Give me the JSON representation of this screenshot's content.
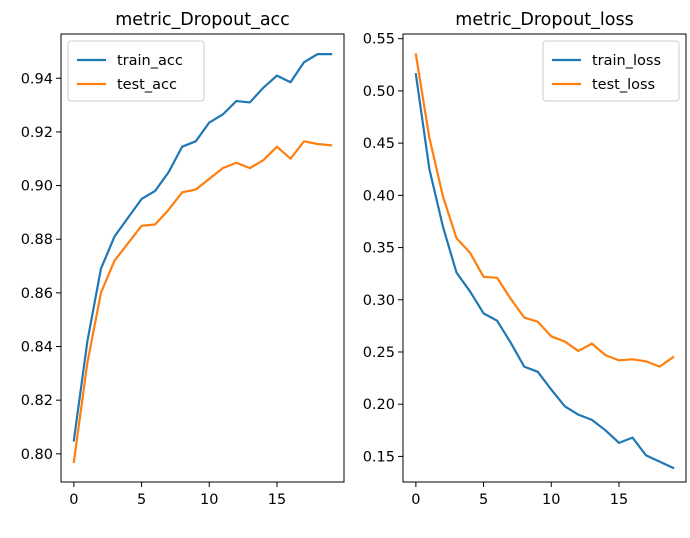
{
  "chart_data": [
    {
      "type": "line",
      "title": "metric_Dropout_acc",
      "xlabel": "",
      "ylabel": "",
      "xlim": [
        -0.95,
        19.95
      ],
      "ylim": [
        0.7895,
        0.9565
      ],
      "xticks": [
        0,
        5,
        10,
        15
      ],
      "xtick_labels": [
        "0",
        "5",
        "10",
        "15"
      ],
      "yticks": [
        0.8,
        0.82,
        0.84,
        0.86,
        0.88,
        0.9,
        0.92,
        0.94
      ],
      "ytick_labels": [
        "0.80",
        "0.82",
        "0.84",
        "0.86",
        "0.88",
        "0.90",
        "0.92",
        "0.94"
      ],
      "legend": "upper left",
      "grid": false,
      "x": [
        0,
        1,
        2,
        3,
        4,
        5,
        6,
        7,
        8,
        9,
        10,
        11,
        12,
        13,
        14,
        15,
        16,
        17,
        18,
        19
      ],
      "series": [
        {
          "name": "train_acc",
          "color": "#1f77b4",
          "values": [
            0.805,
            0.842,
            0.869,
            0.881,
            0.888,
            0.895,
            0.898,
            0.905,
            0.9145,
            0.9165,
            0.9235,
            0.9265,
            0.9315,
            0.931,
            0.9365,
            0.941,
            0.9385,
            0.946,
            0.949,
            0.949
          ]
        },
        {
          "name": "test_acc",
          "color": "#ff7f0e",
          "values": [
            0.797,
            0.834,
            0.86,
            0.872,
            0.8785,
            0.885,
            0.8855,
            0.891,
            0.8975,
            0.8985,
            0.9025,
            0.9065,
            0.9085,
            0.9065,
            0.9095,
            0.9145,
            0.91,
            0.9165,
            0.9155,
            0.915
          ]
        }
      ]
    },
    {
      "type": "line",
      "title": "metric_Dropout_loss",
      "xlabel": "",
      "ylabel": "",
      "xlim": [
        -0.95,
        19.95
      ],
      "ylim": [
        0.1255,
        0.5545
      ],
      "xticks": [
        0,
        5,
        10,
        15
      ],
      "xtick_labels": [
        "0",
        "5",
        "10",
        "15"
      ],
      "yticks": [
        0.15,
        0.2,
        0.25,
        0.3,
        0.35,
        0.4,
        0.45,
        0.5,
        0.55
      ],
      "ytick_labels": [
        "0.15",
        "0.20",
        "0.25",
        "0.30",
        "0.35",
        "0.40",
        "0.45",
        "0.50",
        "0.55"
      ],
      "legend": "upper right",
      "grid": false,
      "x": [
        0,
        1,
        2,
        3,
        4,
        5,
        6,
        7,
        8,
        9,
        10,
        11,
        12,
        13,
        14,
        15,
        16,
        17,
        18,
        19
      ],
      "series": [
        {
          "name": "train_loss",
          "color": "#1f77b4",
          "values": [
            0.516,
            0.425,
            0.37,
            0.326,
            0.308,
            0.287,
            0.28,
            0.259,
            0.236,
            0.231,
            0.214,
            0.198,
            0.19,
            0.185,
            0.175,
            0.163,
            0.168,
            0.151,
            0.145,
            0.139
          ]
        },
        {
          "name": "test_loss",
          "color": "#ff7f0e",
          "values": [
            0.535,
            0.455,
            0.399,
            0.359,
            0.345,
            0.322,
            0.321,
            0.301,
            0.283,
            0.279,
            0.265,
            0.26,
            0.251,
            0.258,
            0.247,
            0.242,
            0.243,
            0.241,
            0.236,
            0.245
          ]
        }
      ]
    }
  ]
}
